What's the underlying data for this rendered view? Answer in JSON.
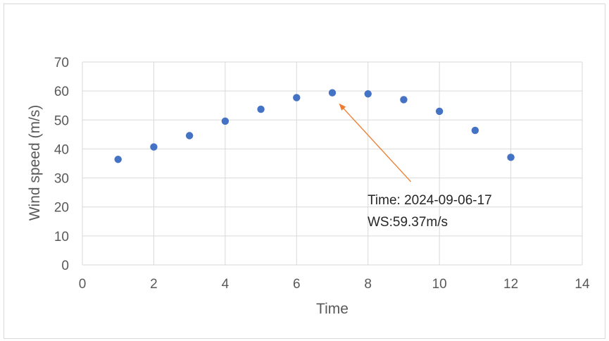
{
  "chart_data": {
    "type": "scatter",
    "xlabel": "Time",
    "ylabel": "Wind speed (m/s)",
    "xlim": [
      0,
      14
    ],
    "ylim": [
      0,
      70
    ],
    "x_ticks": [
      "0",
      "2",
      "4",
      "6",
      "8",
      "10",
      "12",
      "14"
    ],
    "y_ticks": [
      "0",
      "10",
      "20",
      "30",
      "40",
      "50",
      "60",
      "70"
    ],
    "grid": true,
    "marker_color": "#4472c4",
    "points": [
      {
        "x": 1,
        "y": 36.4
      },
      {
        "x": 2,
        "y": 40.7
      },
      {
        "x": 3,
        "y": 44.6
      },
      {
        "x": 4,
        "y": 49.6
      },
      {
        "x": 5,
        "y": 53.7
      },
      {
        "x": 6,
        "y": 57.7
      },
      {
        "x": 7,
        "y": 59.37
      },
      {
        "x": 8,
        "y": 59.0
      },
      {
        "x": 9,
        "y": 57.0
      },
      {
        "x": 10,
        "y": 53.0
      },
      {
        "x": 11,
        "y": 46.4
      },
      {
        "x": 12,
        "y": 37.1
      }
    ],
    "annotation": {
      "line1": "Time: 2024-09-06-17",
      "line2": "WS:59.37m/s",
      "arrow_color": "#ed7d31",
      "target": {
        "x": 7.2,
        "y": 55.5
      },
      "tail": {
        "x": 9.2,
        "y": 28.7
      }
    }
  }
}
